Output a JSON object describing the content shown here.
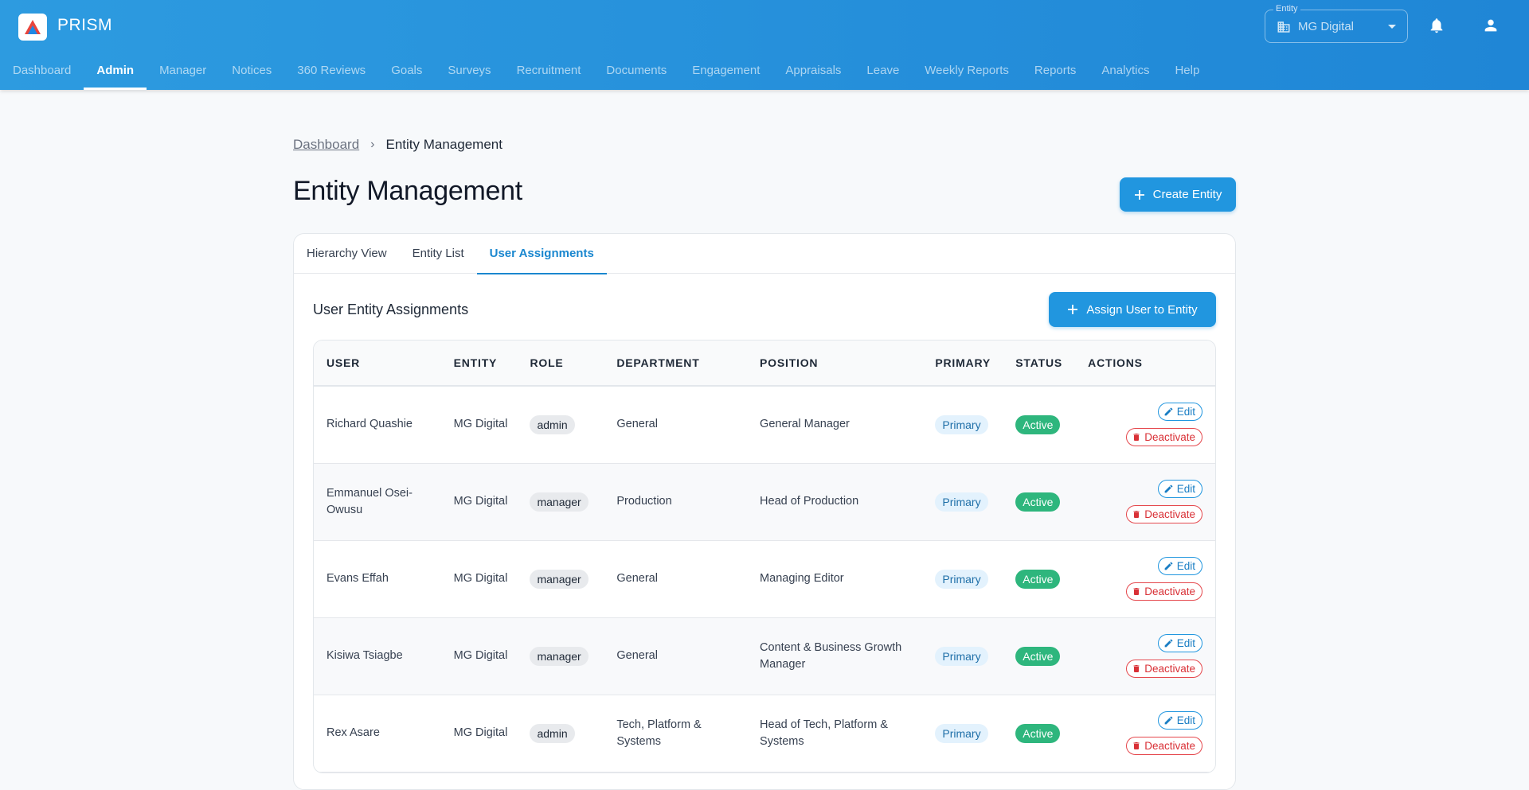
{
  "app": {
    "name": "PRISM"
  },
  "entity_selector": {
    "caption": "Entity",
    "value": "MG Digital"
  },
  "nav": [
    {
      "label": "Dashboard",
      "active": false
    },
    {
      "label": "Admin",
      "active": true
    },
    {
      "label": "Manager",
      "active": false
    },
    {
      "label": "Notices",
      "active": false
    },
    {
      "label": "360 Reviews",
      "active": false
    },
    {
      "label": "Goals",
      "active": false
    },
    {
      "label": "Surveys",
      "active": false
    },
    {
      "label": "Recruitment",
      "active": false
    },
    {
      "label": "Documents",
      "active": false
    },
    {
      "label": "Engagement",
      "active": false
    },
    {
      "label": "Appraisals",
      "active": false
    },
    {
      "label": "Leave",
      "active": false
    },
    {
      "label": "Weekly Reports",
      "active": false
    },
    {
      "label": "Reports",
      "active": false
    },
    {
      "label": "Analytics",
      "active": false
    },
    {
      "label": "Help",
      "active": false
    }
  ],
  "breadcrumb": {
    "link": "Dashboard",
    "separator": "›",
    "current": "Entity Management"
  },
  "page": {
    "title": "Entity Management",
    "create_label": "Create Entity"
  },
  "tabs": [
    {
      "label": "Hierarchy View",
      "active": false
    },
    {
      "label": "Entity List",
      "active": false
    },
    {
      "label": "User Assignments",
      "active": true
    }
  ],
  "section": {
    "title": "User Entity Assignments",
    "assign_label": "Assign User to Entity"
  },
  "table": {
    "columns": [
      "USER",
      "ENTITY",
      "ROLE",
      "DEPARTMENT",
      "POSITION",
      "PRIMARY",
      "STATUS",
      "ACTIONS"
    ],
    "edit_label": "Edit",
    "deactivate_label": "Deactivate",
    "rows": [
      {
        "user": "Richard Quashie",
        "entity": "MG Digital",
        "role": "admin",
        "department": "General",
        "position": "General Manager",
        "primary": "Primary",
        "status": "Active"
      },
      {
        "user": "Emmanuel Osei-Owusu",
        "entity": "MG Digital",
        "role": "manager",
        "department": "Production",
        "position": "Head of Production",
        "primary": "Primary",
        "status": "Active"
      },
      {
        "user": "Evans Effah",
        "entity": "MG Digital",
        "role": "manager",
        "department": "General",
        "position": "Managing Editor",
        "primary": "Primary",
        "status": "Active"
      },
      {
        "user": "Kisiwa Tsiagbe",
        "entity": "MG Digital",
        "role": "manager",
        "department": "General",
        "position": "Content & Business Growth Manager",
        "primary": "Primary",
        "status": "Active"
      },
      {
        "user": "Rex Asare",
        "entity": "MG Digital",
        "role": "admin",
        "department": "Tech, Platform & Systems",
        "position": "Head of Tech, Platform & Systems",
        "primary": "Primary",
        "status": "Active"
      }
    ]
  },
  "colors": {
    "header": "#2196df",
    "accent": "#1a87cf",
    "active_status": "#2eb67d",
    "danger": "#e5484d"
  }
}
